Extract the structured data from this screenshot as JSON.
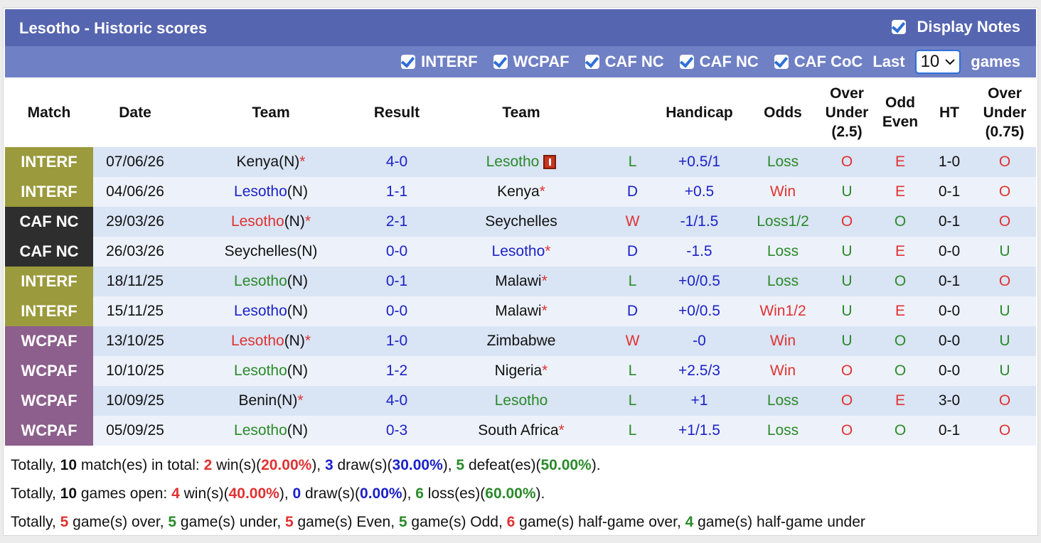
{
  "header": {
    "title": "Lesotho - Historic scores",
    "display_notes": "Display Notes"
  },
  "filters": {
    "items": [
      "INTERF",
      "WCPAF",
      "CAF NC",
      "CAF NC",
      "CAF CoC"
    ],
    "last_label": "Last",
    "last_value": "10",
    "games_label": "games"
  },
  "table": {
    "columns": [
      "Match",
      "Date",
      "Team",
      "Result",
      "Team",
      null,
      "Handicap",
      "Odds",
      "Over\nUnder\n(2.5)",
      "Odd\nEven",
      "HT",
      "Over\nUnder\n(0.75)"
    ],
    "match_colors": {
      "INTERF": "#9b9a3c",
      "CAF NC": "#2e2e2e",
      "WCPAF": "#8c5f8c"
    },
    "result_colors": {
      "W": "red",
      "D": "blue",
      "L": "green"
    },
    "odds_colors": {
      "Win": "red",
      "Win1/2": "red",
      "Loss": "green",
      "Loss1/2": "green"
    },
    "ou_colors": {
      "O": "red",
      "U": "green"
    },
    "oe_colors": {
      "O": "green",
      "E": "red"
    },
    "rows": [
      {
        "match": "INTERF",
        "date": "07/06/26",
        "home": "Kenya",
        "home_tag": "(N)",
        "home_star": "*",
        "home_color": "black",
        "score": "4-0",
        "away": "Lesotho",
        "away_color": "green",
        "away_card": true,
        "result": "L",
        "handicap": "+0.5/1",
        "odds": "Loss",
        "ou": "O",
        "oe": "E",
        "ht": "1-0",
        "ou2": "O"
      },
      {
        "match": "INTERF",
        "date": "04/06/26",
        "home": "Lesotho",
        "home_tag": "(N)",
        "home_color": "blue",
        "score": "1-1",
        "away": "Kenya",
        "away_star": "*",
        "away_color": "black",
        "result": "D",
        "handicap": "+0.5",
        "odds": "Win",
        "ou": "U",
        "oe": "E",
        "ht": "0-1",
        "ou2": "O"
      },
      {
        "match": "CAF NC",
        "date": "29/03/26",
        "home": "Lesotho",
        "home_tag": "(N)",
        "home_star": "*",
        "home_color": "red",
        "score": "2-1",
        "away": "Seychelles",
        "away_color": "black",
        "result": "W",
        "handicap": "-1/1.5",
        "odds": "Loss1/2",
        "ou": "O",
        "oe": "O",
        "ht": "0-1",
        "ou2": "O"
      },
      {
        "match": "CAF NC",
        "date": "26/03/26",
        "home": "Seychelles",
        "home_tag": "(N)",
        "home_color": "black",
        "score": "0-0",
        "away": "Lesotho",
        "away_star": "*",
        "away_color": "blue",
        "result": "D",
        "handicap": "-1.5",
        "odds": "Loss",
        "ou": "U",
        "oe": "E",
        "ht": "0-0",
        "ou2": "U"
      },
      {
        "match": "INTERF",
        "date": "18/11/25",
        "home": "Lesotho",
        "home_tag": "(N)",
        "home_color": "green",
        "score": "0-1",
        "away": "Malawi",
        "away_star": "*",
        "away_color": "black",
        "result": "L",
        "handicap": "+0/0.5",
        "odds": "Loss",
        "ou": "U",
        "oe": "O",
        "ht": "0-1",
        "ou2": "O"
      },
      {
        "match": "INTERF",
        "date": "15/11/25",
        "home": "Lesotho",
        "home_tag": "(N)",
        "home_color": "blue",
        "score": "0-0",
        "away": "Malawi",
        "away_star": "*",
        "away_color": "black",
        "result": "D",
        "handicap": "+0/0.5",
        "odds": "Win1/2",
        "ou": "U",
        "oe": "E",
        "ht": "0-0",
        "ou2": "U"
      },
      {
        "match": "WCPAF",
        "date": "13/10/25",
        "home": "Lesotho",
        "home_tag": "(N)",
        "home_star": "*",
        "home_color": "red",
        "score": "1-0",
        "away": "Zimbabwe",
        "away_color": "black",
        "result": "W",
        "handicap": "-0",
        "odds": "Win",
        "ou": "U",
        "oe": "O",
        "ht": "0-0",
        "ou2": "U"
      },
      {
        "match": "WCPAF",
        "date": "10/10/25",
        "home": "Lesotho",
        "home_tag": "(N)",
        "home_color": "green",
        "score": "1-2",
        "away": "Nigeria",
        "away_star": "*",
        "away_color": "black",
        "result": "L",
        "handicap": "+2.5/3",
        "odds": "Win",
        "ou": "O",
        "oe": "O",
        "ht": "0-0",
        "ou2": "U"
      },
      {
        "match": "WCPAF",
        "date": "10/09/25",
        "home": "Benin",
        "home_tag": "(N)",
        "home_star": "*",
        "home_color": "black",
        "score": "4-0",
        "away": "Lesotho",
        "away_color": "green",
        "result": "L",
        "handicap": "+1",
        "odds": "Loss",
        "ou": "O",
        "oe": "E",
        "ht": "3-0",
        "ou2": "O"
      },
      {
        "match": "WCPAF",
        "date": "05/09/25",
        "home": "Lesotho",
        "home_tag": "(N)",
        "home_color": "green",
        "score": "0-3",
        "away": "South Africa",
        "away_star": "*",
        "away_color": "black",
        "result": "L",
        "handicap": "+1/1.5",
        "odds": "Loss",
        "ou": "O",
        "oe": "O",
        "ht": "0-1",
        "ou2": "O"
      }
    ]
  },
  "summary": [
    [
      {
        "text": "Totally, "
      },
      {
        "text": "10",
        "bold": true
      },
      {
        "text": " match(es) in total: "
      },
      {
        "text": "2",
        "color": "red",
        "bold": true
      },
      {
        "text": " win(s)("
      },
      {
        "text": "20.00%",
        "color": "red",
        "bold": true
      },
      {
        "text": "), "
      },
      {
        "text": "3",
        "color": "blue",
        "bold": true
      },
      {
        "text": " draw(s)("
      },
      {
        "text": "30.00%",
        "color": "blue",
        "bold": true
      },
      {
        "text": "), "
      },
      {
        "text": "5",
        "color": "green",
        "bold": true
      },
      {
        "text": " defeat(es)("
      },
      {
        "text": "50.00%",
        "color": "green",
        "bold": true
      },
      {
        "text": ")."
      }
    ],
    [
      {
        "text": "Totally, "
      },
      {
        "text": "10",
        "bold": true
      },
      {
        "text": " games open: "
      },
      {
        "text": "4",
        "color": "red",
        "bold": true
      },
      {
        "text": " win(s)("
      },
      {
        "text": "40.00%",
        "color": "red",
        "bold": true
      },
      {
        "text": "), "
      },
      {
        "text": "0",
        "color": "blue",
        "bold": true
      },
      {
        "text": " draw(s)("
      },
      {
        "text": "0.00%",
        "color": "blue",
        "bold": true
      },
      {
        "text": "), "
      },
      {
        "text": "6",
        "color": "green",
        "bold": true
      },
      {
        "text": " loss(es)("
      },
      {
        "text": "60.00%",
        "color": "green",
        "bold": true
      },
      {
        "text": ")."
      }
    ],
    [
      {
        "text": "Totally, "
      },
      {
        "text": "5",
        "color": "red",
        "bold": true
      },
      {
        "text": " game(s) over, "
      },
      {
        "text": "5",
        "color": "green",
        "bold": true
      },
      {
        "text": " game(s) under, "
      },
      {
        "text": "5",
        "color": "red",
        "bold": true
      },
      {
        "text": " game(s) Even, "
      },
      {
        "text": "5",
        "color": "green",
        "bold": true
      },
      {
        "text": " game(s) Odd, "
      },
      {
        "text": "6",
        "color": "red",
        "bold": true
      },
      {
        "text": " game(s) half-game over, "
      },
      {
        "text": "4",
        "color": "green",
        "bold": true
      },
      {
        "text": " game(s) half-game under"
      }
    ]
  ]
}
